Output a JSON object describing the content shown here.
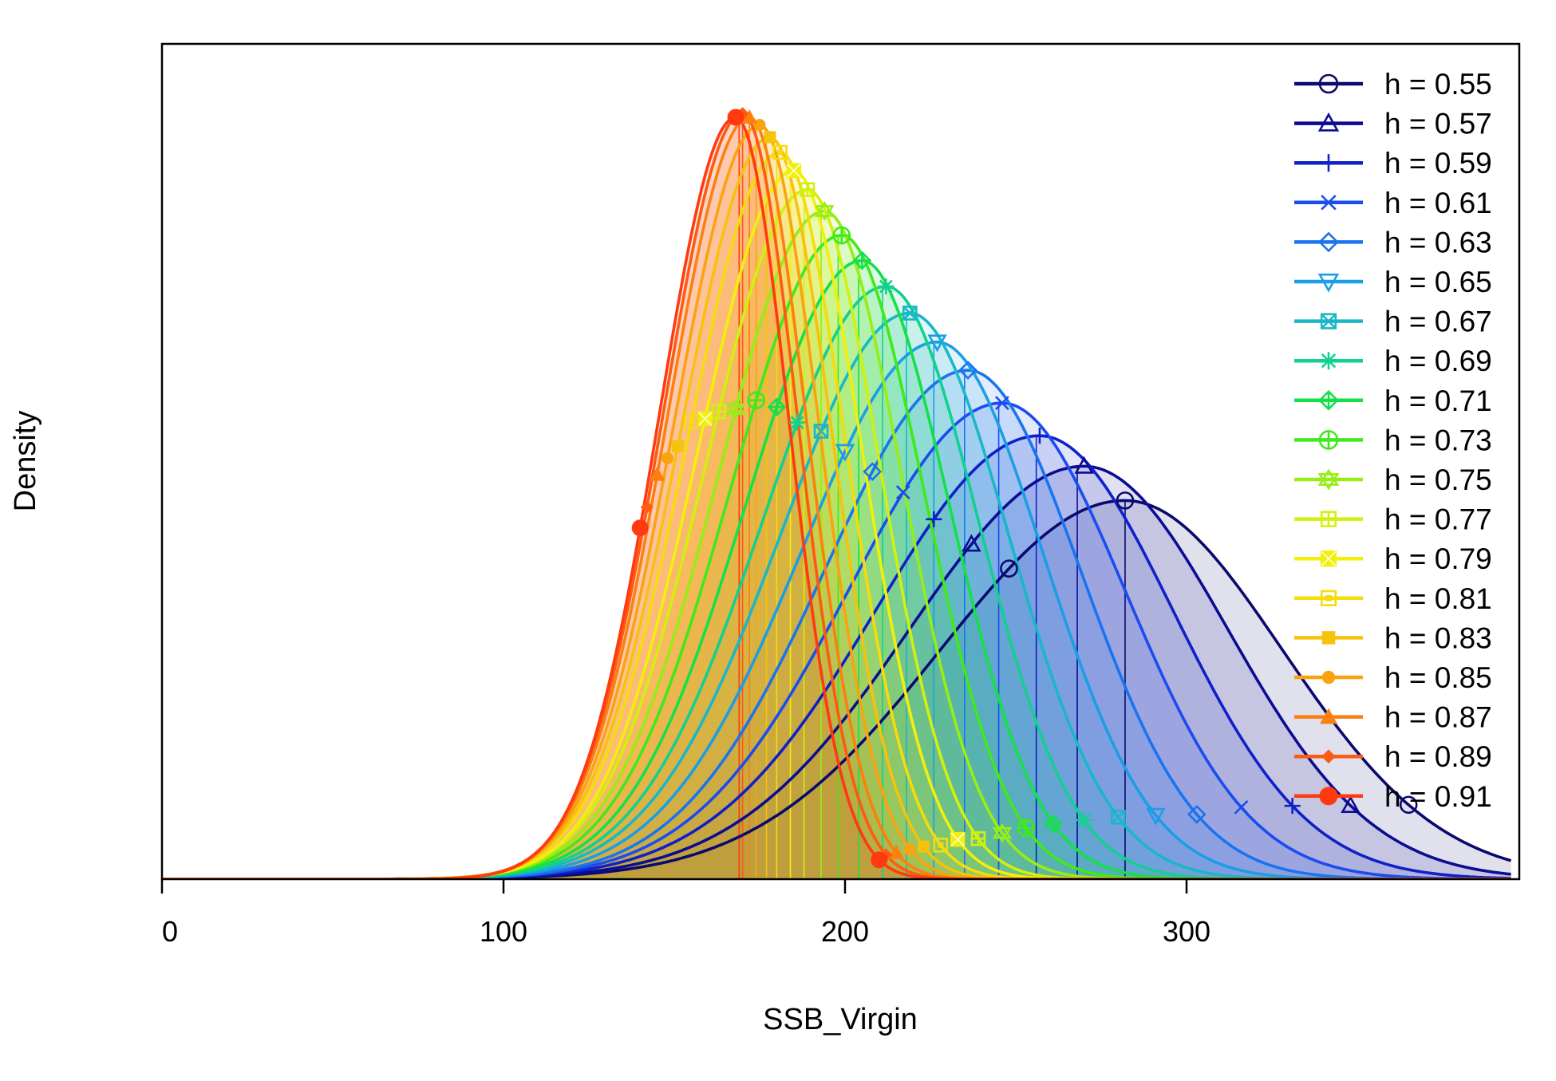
{
  "chart_data": {
    "type": "line",
    "title": "",
    "xlabel": "SSB_Virgin",
    "ylabel": "Density",
    "xlim": [
      0,
      395
    ],
    "ylim": [
      0,
      1.05
    ],
    "x_ticks": [
      0,
      100,
      200,
      300
    ],
    "x_tick_labels": [
      "0",
      "100",
      "200",
      "300"
    ],
    "y_ticks_shown": false,
    "grid": false,
    "legend_position": "top-right",
    "series": [
      {
        "name": "h = 0.55",
        "color": "#0a0a6e",
        "symbol": "circle-open",
        "mode": 282,
        "peak": 0.497,
        "sd_left": 54,
        "sd_right": 46,
        "median": 282,
        "q_low": 248,
        "q_high": 365
      },
      {
        "name": "h = 0.57",
        "color": "#0c0c93",
        "symbol": "triangle-open",
        "mode": 270,
        "peak": 0.542,
        "sd_left": 51,
        "sd_right": 42,
        "median": 268,
        "q_low": 237,
        "q_high": 348
      },
      {
        "name": "h = 0.59",
        "color": "#1020c8",
        "symbol": "plus",
        "mode": 257,
        "peak": 0.582,
        "sd_left": 48,
        "sd_right": 39,
        "median": 256,
        "q_low": 226,
        "q_high": 331
      },
      {
        "name": "h = 0.61",
        "color": "#1a4cf0",
        "symbol": "cross",
        "mode": 246,
        "peak": 0.625,
        "sd_left": 45,
        "sd_right": 36,
        "median": 245,
        "q_low": 217,
        "q_high": 316
      },
      {
        "name": "h = 0.63",
        "color": "#1a74f0",
        "symbol": "diamond-open",
        "mode": 236,
        "peak": 0.668,
        "sd_left": 42,
        "sd_right": 33,
        "median": 235,
        "q_low": 208,
        "q_high": 303
      },
      {
        "name": "h = 0.65",
        "color": "#1a9ee6",
        "symbol": "triangle-down-open",
        "mode": 227,
        "peak": 0.705,
        "sd_left": 40,
        "sd_right": 31,
        "median": 226,
        "q_low": 200,
        "q_high": 291
      },
      {
        "name": "h = 0.67",
        "color": "#18b8c8",
        "symbol": "square-cross",
        "mode": 219,
        "peak": 0.743,
        "sd_left": 38,
        "sd_right": 29,
        "median": 218,
        "q_low": 193,
        "q_high": 280
      },
      {
        "name": "h = 0.69",
        "color": "#12d08e",
        "symbol": "asterisk",
        "mode": 212,
        "peak": 0.778,
        "sd_left": 36,
        "sd_right": 27,
        "median": 211,
        "q_low": 186,
        "q_high": 270
      },
      {
        "name": "h = 0.71",
        "color": "#14e04a",
        "symbol": "diamond-plus",
        "mode": 205,
        "peak": 0.812,
        "sd_left": 34,
        "sd_right": 25.5,
        "median": 204,
        "q_low": 180,
        "q_high": 261
      },
      {
        "name": "h = 0.73",
        "color": "#3eea1a",
        "symbol": "circle-plus",
        "mode": 199,
        "peak": 0.845,
        "sd_left": 32.5,
        "sd_right": 24,
        "median": 198,
        "q_low": 174,
        "q_high": 253
      },
      {
        "name": "h = 0.75",
        "color": "#96ee14",
        "symbol": "star-of-david",
        "mode": 194,
        "peak": 0.877,
        "sd_left": 31,
        "sd_right": 22.5,
        "median": 193,
        "q_low": 168,
        "q_high": 246
      },
      {
        "name": "h = 0.77",
        "color": "#d2f00e",
        "symbol": "square-plus",
        "mode": 189,
        "peak": 0.905,
        "sd_left": 29.5,
        "sd_right": 21,
        "median": 188,
        "q_low": 163,
        "q_high": 239
      },
      {
        "name": "h = 0.79",
        "color": "#f2f00a",
        "symbol": "square-x",
        "mode": 185,
        "peak": 0.93,
        "sd_left": 28,
        "sd_right": 20,
        "median": 184,
        "q_low": 159,
        "q_high": 233
      },
      {
        "name": "h = 0.81",
        "color": "#f5dc0a",
        "symbol": "square-open-dot",
        "mode": 181,
        "peak": 0.954,
        "sd_left": 27,
        "sd_right": 19,
        "median": 180,
        "q_low": 155,
        "q_high": 228
      },
      {
        "name": "h = 0.83",
        "color": "#f7c20c",
        "symbol": "square-filled",
        "mode": 178,
        "peak": 0.974,
        "sd_left": 26,
        "sd_right": 18,
        "median": 177,
        "q_low": 151,
        "q_high": 223
      },
      {
        "name": "h = 0.85",
        "color": "#f9a40e",
        "symbol": "circle-filled",
        "mode": 175,
        "peak": 0.99,
        "sd_left": 25,
        "sd_right": 17.3,
        "median": 174,
        "q_low": 148,
        "q_high": 219
      },
      {
        "name": "h = 0.87",
        "color": "#fb8010",
        "symbol": "triangle-filled",
        "mode": 172,
        "peak": 1.0,
        "sd_left": 24,
        "sd_right": 16.6,
        "median": 172,
        "q_low": 145,
        "q_high": 215
      },
      {
        "name": "h = 0.89",
        "color": "#fd5a12",
        "symbol": "diamond-filled",
        "mode": 170,
        "peak": 1.005,
        "sd_left": 23.3,
        "sd_right": 16,
        "median": 170,
        "q_low": 142,
        "q_high": 212
      },
      {
        "name": "h = 0.91",
        "color": "#ff3a10",
        "symbol": "circle-filled-large",
        "mode": 168,
        "peak": 1.0,
        "sd_left": 22.5,
        "sd_right": 15.5,
        "median": 169,
        "q_low": 140,
        "q_high": 210
      }
    ]
  }
}
